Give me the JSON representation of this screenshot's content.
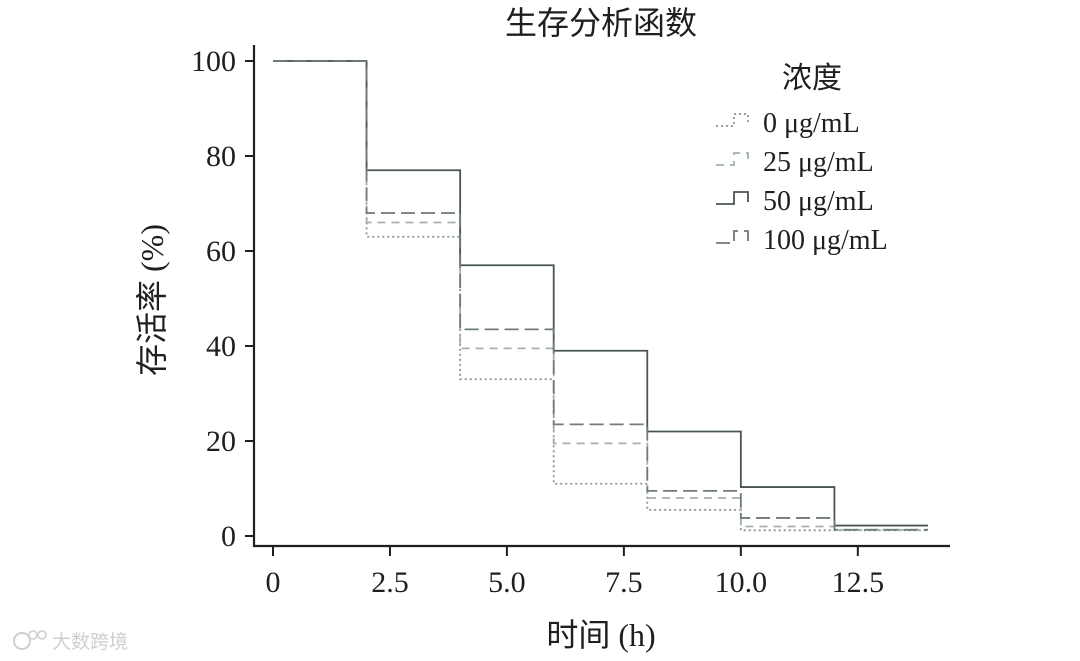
{
  "chart_data": {
    "type": "line",
    "step": true,
    "title": "生存分析函数",
    "xlabel": "时间 (h)",
    "ylabel": "存活率 (%)",
    "xlim": [
      0,
      14
    ],
    "ylim": [
      0,
      100
    ],
    "xticks": [
      0,
      2.5,
      5.0,
      7.5,
      10.0,
      12.5
    ],
    "xtick_labels": [
      "0",
      "2.5",
      "5.0",
      "7.5",
      "10.0",
      "12.5"
    ],
    "yticks": [
      0,
      20,
      40,
      60,
      80,
      100
    ],
    "ytick_labels": [
      "0",
      "20",
      "40",
      "60",
      "80",
      "100"
    ],
    "grid": false,
    "legend_title": "浓度",
    "legend_position": "top-right",
    "x": [
      0,
      2,
      4,
      6,
      8,
      10,
      12,
      14
    ],
    "series": [
      {
        "name": "0 μg/mL",
        "values": [
          100,
          63,
          33,
          11,
          5.5,
          1.2,
          1.2,
          1.2
        ],
        "color": "#8a9597",
        "dash": "dotted"
      },
      {
        "name": "25 μg/mL",
        "values": [
          100,
          66,
          39.5,
          19.5,
          8,
          2,
          1.3,
          1.3
        ],
        "color": "#a3b0b1",
        "dash": "dashed"
      },
      {
        "name": "50 μg/mL",
        "values": [
          100,
          77,
          57,
          39,
          22,
          10.3,
          2.2,
          2.2
        ],
        "color": "#4a5556",
        "dash": "solid"
      },
      {
        "name": "100 μg/mL",
        "values": [
          100,
          68,
          43.5,
          23.5,
          9.5,
          3.8,
          1.3,
          1.3
        ],
        "color": "#6f7a7c",
        "dash": "longdash"
      }
    ]
  },
  "watermark": "大数跨境",
  "watermark_icon": "weibo-logo-icon"
}
